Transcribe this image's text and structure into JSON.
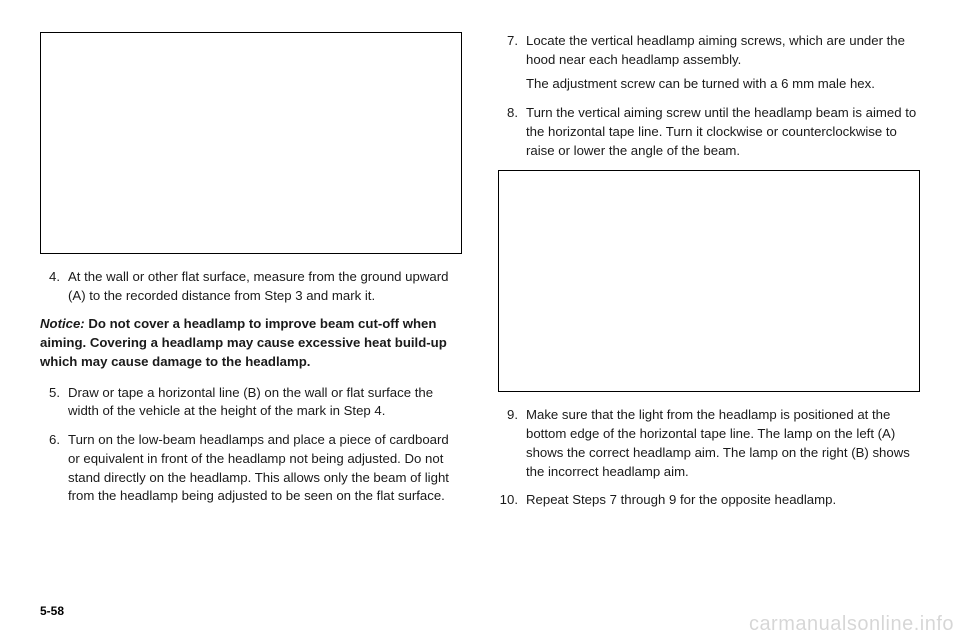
{
  "left": {
    "step4": {
      "num": "4.",
      "text": "At the wall or other flat surface, measure from the ground upward (A) to the recorded distance from Step 3 and mark it."
    },
    "notice": {
      "label": "Notice:",
      "text": "Do not cover a headlamp to improve beam cut-off when aiming. Covering a headlamp may cause excessive heat build-up which may cause damage to the headlamp."
    },
    "step5": {
      "num": "5.",
      "text": "Draw or tape a horizontal line (B) on the wall or flat surface the width of the vehicle at the height of the mark in Step 4."
    },
    "step6": {
      "num": "6.",
      "text": "Turn on the low-beam headlamps and place a piece of cardboard or equivalent in front of the headlamp not being adjusted. Do not stand directly on the headlamp. This allows only the beam of light from the headlamp being adjusted to be seen on the flat surface."
    }
  },
  "right": {
    "step7": {
      "num": "7.",
      "text": "Locate the vertical headlamp aiming screws, which are under the hood near each headlamp assembly.",
      "sub": "The adjustment screw can be turned with a 6 mm male hex."
    },
    "step8": {
      "num": "8.",
      "text": "Turn the vertical aiming screw until the headlamp beam is aimed to the horizontal tape line. Turn it clockwise or counterclockwise to raise or lower the angle of the beam."
    },
    "step9": {
      "num": "9.",
      "text": "Make sure that the light from the headlamp is positioned at the bottom edge of the horizontal tape line. The lamp on the left (A) shows the correct headlamp aim. The lamp on the right (B) shows the incorrect headlamp aim."
    },
    "step10": {
      "num": "10.",
      "text": "Repeat Steps 7 through 9 for the opposite headlamp."
    }
  },
  "page_number": "5-58",
  "watermark": "carmanualsonline.info",
  "placeholder": {
    "border_color": "#000000",
    "background": "#ffffff"
  }
}
